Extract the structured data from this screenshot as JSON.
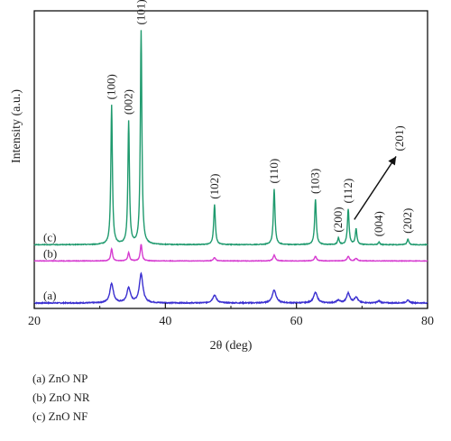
{
  "chart_data": {
    "type": "line",
    "xlabel": "2θ (deg)",
    "ylabel": "Intensity (a.u.)",
    "xlim": [
      20,
      80
    ],
    "xticks": [
      20,
      40,
      60,
      80
    ],
    "yticks_shown": false,
    "grid": false,
    "series": [
      {
        "tag": "(a)",
        "color": "#3a2fd0",
        "baseline": 0.0,
        "noise": 0.15,
        "peaks": [
          {
            "x": 31.8,
            "h": 3.0,
            "w": 0.32
          },
          {
            "x": 34.4,
            "h": 2.3,
            "w": 0.32
          },
          {
            "x": 36.3,
            "h": 4.5,
            "w": 0.32
          },
          {
            "x": 47.5,
            "h": 1.2,
            "w": 0.35
          },
          {
            "x": 56.6,
            "h": 2.0,
            "w": 0.35
          },
          {
            "x": 62.9,
            "h": 1.6,
            "w": 0.35
          },
          {
            "x": 66.4,
            "h": 0.4,
            "w": 0.3
          },
          {
            "x": 67.9,
            "h": 1.5,
            "w": 0.3
          },
          {
            "x": 69.1,
            "h": 0.9,
            "w": 0.3
          },
          {
            "x": 72.6,
            "h": 0.3,
            "w": 0.3
          },
          {
            "x": 77.0,
            "h": 0.4,
            "w": 0.3
          }
        ]
      },
      {
        "tag": "(b)",
        "color": "#d63bd0",
        "baseline": 6.5,
        "noise": 0.08,
        "peaks": [
          {
            "x": 31.8,
            "h": 1.9,
            "w": 0.16
          },
          {
            "x": 34.4,
            "h": 1.3,
            "w": 0.16
          },
          {
            "x": 36.3,
            "h": 2.6,
            "w": 0.16
          },
          {
            "x": 47.5,
            "h": 0.5,
            "w": 0.2
          },
          {
            "x": 56.6,
            "h": 0.9,
            "w": 0.2
          },
          {
            "x": 62.9,
            "h": 0.7,
            "w": 0.2
          },
          {
            "x": 67.9,
            "h": 0.7,
            "w": 0.2
          },
          {
            "x": 69.1,
            "h": 0.4,
            "w": 0.2
          }
        ]
      },
      {
        "tag": "(c)",
        "color": "#1f9a6e",
        "baseline": 9.0,
        "noise": 0.1,
        "peaks": [
          {
            "x": 31.8,
            "h": 21.5,
            "w": 0.14
          },
          {
            "x": 34.4,
            "h": 19.0,
            "w": 0.14
          },
          {
            "x": 36.3,
            "h": 33.0,
            "w": 0.14
          },
          {
            "x": 47.5,
            "h": 6.2,
            "w": 0.15
          },
          {
            "x": 56.6,
            "h": 8.6,
            "w": 0.15
          },
          {
            "x": 62.9,
            "h": 7.0,
            "w": 0.15
          },
          {
            "x": 66.4,
            "h": 1.0,
            "w": 0.15
          },
          {
            "x": 67.9,
            "h": 5.5,
            "w": 0.15
          },
          {
            "x": 69.1,
            "h": 2.4,
            "w": 0.15
          },
          {
            "x": 72.6,
            "h": 0.4,
            "w": 0.15
          },
          {
            "x": 77.0,
            "h": 0.9,
            "w": 0.15
          }
        ]
      }
    ],
    "peak_annotations": [
      {
        "text": "(100)",
        "x": 31.8
      },
      {
        "text": "(002)",
        "x": 34.4
      },
      {
        "text": "(101)",
        "x": 36.3
      },
      {
        "text": "(102)",
        "x": 47.5
      },
      {
        "text": "(110)",
        "x": 56.6
      },
      {
        "text": "(103)",
        "x": 62.9
      },
      {
        "text": "(200)",
        "x": 66.4
      },
      {
        "text": "(112)",
        "x": 67.9
      },
      {
        "text": "(004)",
        "x": 72.6
      },
      {
        "text": "(202)",
        "x": 77.0
      },
      {
        "text": "(201)",
        "x": 69.1,
        "arrow": true
      }
    ]
  },
  "legend": [
    "(a) ZnO NP",
    "(b) ZnO NR",
    "(c) ZnO NF"
  ]
}
